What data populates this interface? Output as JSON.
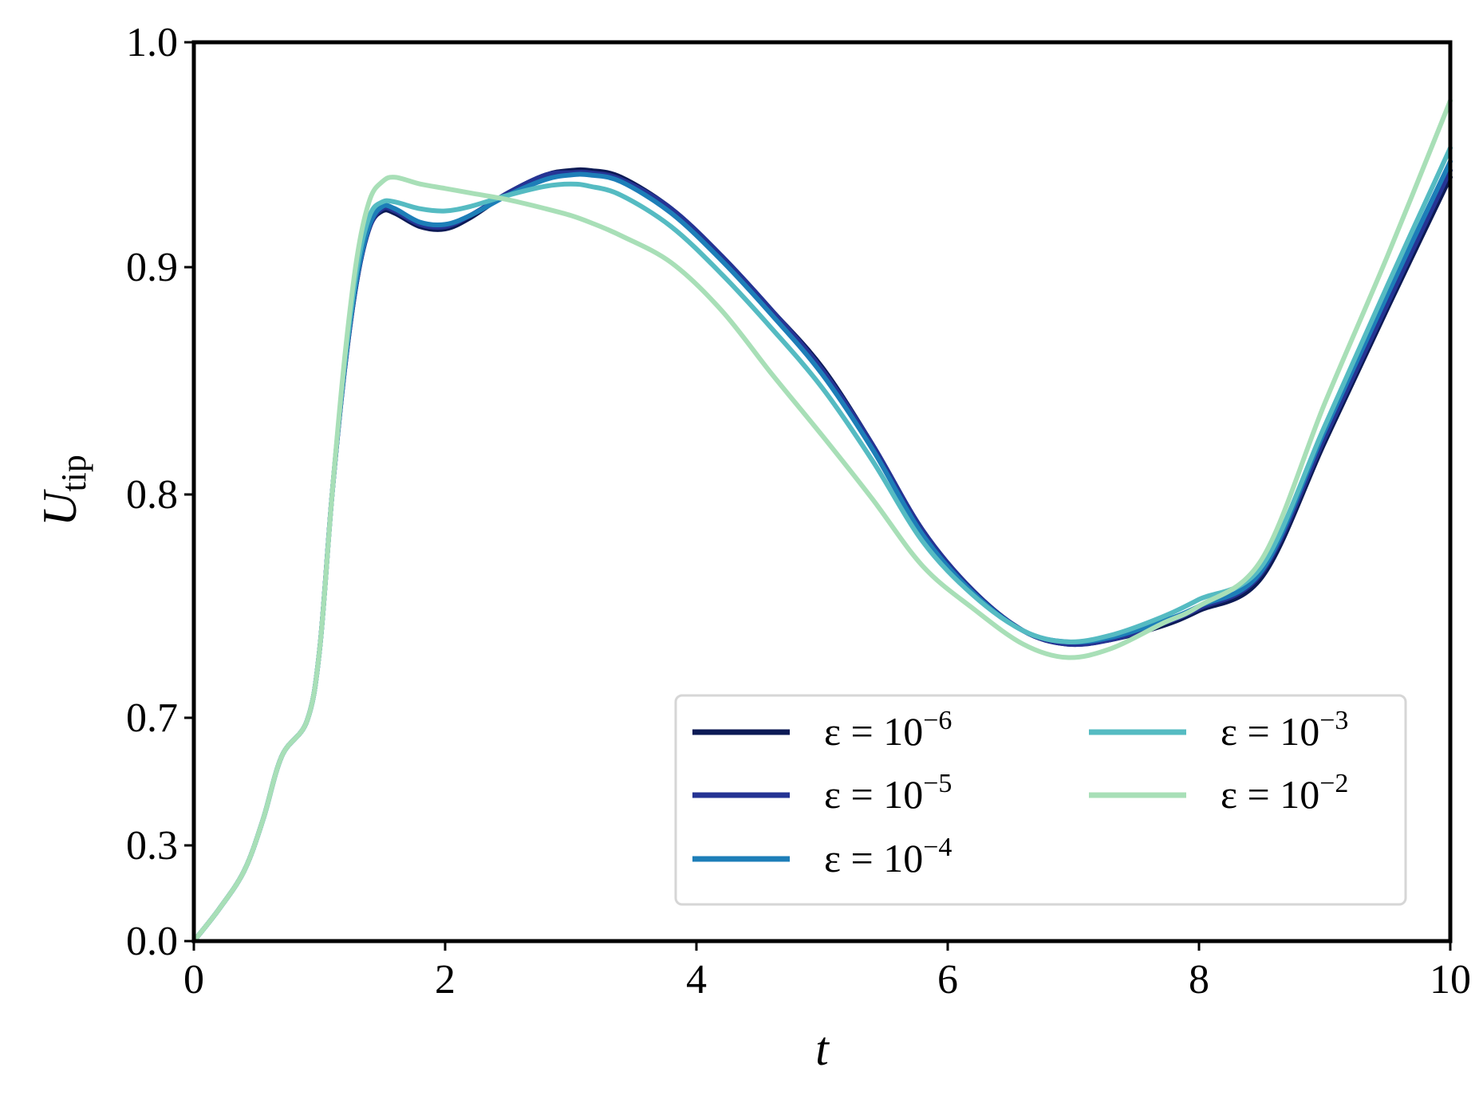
{
  "chart_data": {
    "type": "line",
    "title": "",
    "xlabel": "t",
    "ylabel": {
      "main": "U",
      "subscript": "tip"
    },
    "xlim": [
      0,
      10
    ],
    "x_ticks": [
      0,
      2,
      4,
      6,
      8,
      10
    ],
    "x_tick_labels": [
      "0",
      "2",
      "4",
      "6",
      "8",
      "10"
    ],
    "y_tick_labels": [
      "0.0",
      "0.3",
      "0.7",
      "0.8",
      "0.9",
      "1.0"
    ],
    "y_scale_note": "non-uniform tick spacing as printed",
    "grid": false,
    "legend_position": "lower-right",
    "legend_columns": 2,
    "series": [
      {
        "name": "ε = 10⁻⁶",
        "label_base": "ε = 10",
        "label_exp": "−6",
        "color": "#0c1a55",
        "x": [
          0,
          0.2,
          0.4,
          0.55,
          0.7,
          0.9,
          1.0,
          1.1,
          1.2,
          1.3,
          1.4,
          1.5,
          1.6,
          1.8,
          2.0,
          2.2,
          2.5,
          2.8,
          3.0,
          3.15,
          3.4,
          3.8,
          4.2,
          4.6,
          5.0,
          5.4,
          5.8,
          6.2,
          6.6,
          6.95,
          7.3,
          7.7,
          8.0,
          8.5,
          9.0,
          9.5,
          10.0
        ],
        "y": [
          0.0,
          0.1,
          0.22,
          0.38,
          0.58,
          0.69,
          0.73,
          0.8,
          0.855,
          0.895,
          0.918,
          0.925,
          0.924,
          0.918,
          0.917,
          0.922,
          0.933,
          0.941,
          0.943,
          0.943,
          0.94,
          0.926,
          0.905,
          0.881,
          0.856,
          0.822,
          0.784,
          0.757,
          0.739,
          0.733,
          0.735,
          0.741,
          0.748,
          0.763,
          0.823,
          0.882,
          0.94
        ]
      },
      {
        "name": "ε = 10⁻⁵",
        "label_base": "ε = 10",
        "label_exp": "−5",
        "color": "#253494",
        "x": [
          0,
          0.2,
          0.4,
          0.55,
          0.7,
          0.9,
          1.0,
          1.1,
          1.2,
          1.3,
          1.4,
          1.5,
          1.6,
          1.8,
          2.0,
          2.2,
          2.5,
          2.8,
          3.0,
          3.15,
          3.4,
          3.8,
          4.2,
          4.6,
          5.0,
          5.4,
          5.8,
          6.2,
          6.6,
          6.95,
          7.3,
          7.7,
          8.0,
          8.5,
          9.0,
          9.5,
          10.0
        ],
        "y": [
          0.0,
          0.1,
          0.22,
          0.38,
          0.58,
          0.69,
          0.73,
          0.8,
          0.855,
          0.895,
          0.918,
          0.926,
          0.925,
          0.919,
          0.918,
          0.923,
          0.933,
          0.941,
          0.942,
          0.942,
          0.939,
          0.926,
          0.905,
          0.881,
          0.855,
          0.822,
          0.784,
          0.757,
          0.739,
          0.733,
          0.735,
          0.742,
          0.749,
          0.765,
          0.825,
          0.884,
          0.943
        ]
      },
      {
        "name": "ε = 10⁻⁴",
        "label_base": "ε = 10",
        "label_exp": "−4",
        "color": "#1d7eb8",
        "x": [
          0,
          0.2,
          0.4,
          0.55,
          0.7,
          0.9,
          1.0,
          1.1,
          1.2,
          1.3,
          1.4,
          1.5,
          1.6,
          1.8,
          2.0,
          2.2,
          2.5,
          2.8,
          3.0,
          3.15,
          3.4,
          3.8,
          4.2,
          4.6,
          5.0,
          5.4,
          5.8,
          6.2,
          6.6,
          6.95,
          7.3,
          7.7,
          8.0,
          8.5,
          9.0,
          9.5,
          10.0
        ],
        "y": [
          0.0,
          0.1,
          0.22,
          0.38,
          0.58,
          0.69,
          0.73,
          0.8,
          0.856,
          0.896,
          0.919,
          0.927,
          0.926,
          0.92,
          0.919,
          0.923,
          0.932,
          0.939,
          0.941,
          0.941,
          0.938,
          0.924,
          0.903,
          0.879,
          0.853,
          0.82,
          0.782,
          0.756,
          0.739,
          0.734,
          0.736,
          0.743,
          0.75,
          0.766,
          0.828,
          0.888,
          0.947
        ]
      },
      {
        "name": "ε = 10⁻³",
        "label_base": "ε = 10",
        "label_exp": "−3",
        "color": "#55bbc2",
        "x": [
          0,
          0.2,
          0.4,
          0.55,
          0.7,
          0.9,
          1.0,
          1.1,
          1.2,
          1.3,
          1.4,
          1.5,
          1.6,
          1.8,
          2.0,
          2.2,
          2.5,
          2.8,
          3.0,
          3.15,
          3.4,
          3.8,
          4.2,
          4.6,
          5.0,
          5.4,
          5.8,
          6.2,
          6.6,
          6.95,
          7.3,
          7.7,
          8.0,
          8.5,
          9.0,
          9.5,
          10.0
        ],
        "y": [
          0.0,
          0.1,
          0.22,
          0.38,
          0.58,
          0.69,
          0.73,
          0.8,
          0.857,
          0.9,
          0.923,
          0.929,
          0.929,
          0.926,
          0.925,
          0.927,
          0.932,
          0.936,
          0.937,
          0.936,
          0.932,
          0.918,
          0.897,
          0.873,
          0.847,
          0.815,
          0.779,
          0.755,
          0.739,
          0.734,
          0.737,
          0.745,
          0.753,
          0.768,
          0.83,
          0.892,
          0.953
        ]
      },
      {
        "name": "ε = 10⁻²",
        "label_base": "ε = 10",
        "label_exp": "−2",
        "color": "#a8dfb7",
        "x": [
          0,
          0.2,
          0.4,
          0.55,
          0.7,
          0.9,
          1.0,
          1.1,
          1.2,
          1.3,
          1.4,
          1.5,
          1.6,
          1.8,
          2.0,
          2.2,
          2.5,
          2.8,
          3.0,
          3.15,
          3.4,
          3.8,
          4.2,
          4.6,
          5.0,
          5.4,
          5.8,
          6.2,
          6.6,
          6.95,
          7.3,
          7.7,
          8.0,
          8.5,
          9.0,
          9.5,
          10.0
        ],
        "y": [
          0.0,
          0.1,
          0.22,
          0.38,
          0.58,
          0.69,
          0.73,
          0.8,
          0.86,
          0.905,
          0.93,
          0.938,
          0.94,
          0.937,
          0.935,
          0.933,
          0.93,
          0.926,
          0.923,
          0.92,
          0.914,
          0.902,
          0.881,
          0.853,
          0.826,
          0.798,
          0.768,
          0.749,
          0.733,
          0.727,
          0.731,
          0.742,
          0.75,
          0.771,
          0.84,
          0.905,
          0.974
        ]
      }
    ]
  }
}
